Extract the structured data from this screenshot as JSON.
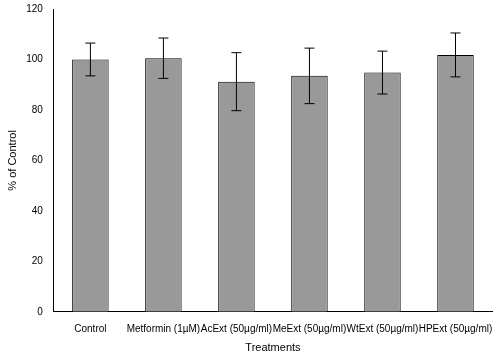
{
  "chart_data": {
    "type": "bar",
    "x_label": "Treatments",
    "y_label": "% of Control",
    "categories": [
      "Control",
      "Metformin (1µM)",
      "AcExt (50µg/ml)",
      "MeExt (50µg/ml)",
      "WtExt (50µg/ml)",
      "HPExt (50µg/ml)"
    ],
    "values": [
      100,
      100.5,
      91.2,
      93.5,
      94.8,
      101.8
    ],
    "errors": [
      6.5,
      8,
      11.5,
      11,
      8.5,
      8.7
    ],
    "color": "#999999",
    "ylim": [
      0,
      120
    ],
    "yticks": [
      0,
      20,
      40,
      60,
      80,
      100,
      120
    ],
    "grid": false
  }
}
